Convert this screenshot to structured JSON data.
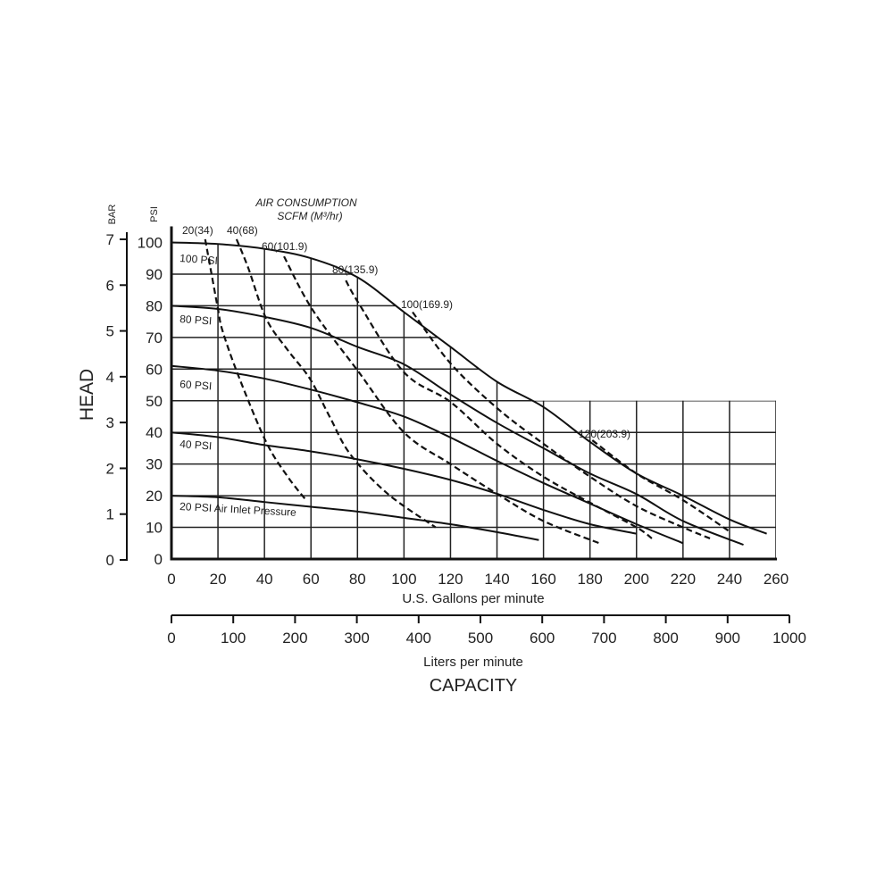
{
  "chart_data": {
    "type": "line",
    "ylabel": "HEAD",
    "ylabel_left_units": "BAR",
    "ylabel_right_units": "PSI",
    "xlabel": "U.S. Gallons per minute",
    "x2label": "Liters per minute",
    "caption": "CAPACITY",
    "air_title_1": "AIR CONSUMPTION",
    "air_title_2": "SCFM (M³/hr)",
    "xlim": [
      0,
      260
    ],
    "ylim": [
      0,
      100
    ],
    "x_ticks": [
      "0",
      "20",
      "40",
      "60",
      "80",
      "100",
      "120",
      "140",
      "160",
      "180",
      "200",
      "220",
      "240",
      "260"
    ],
    "y_ticks": [
      "0",
      "10",
      "20",
      "30",
      "40",
      "50",
      "60",
      "70",
      "80",
      "90",
      "100"
    ],
    "bar_ticks": [
      "0",
      "1",
      "2",
      "3",
      "4",
      "5",
      "6",
      "7"
    ],
    "lpm_ticks": [
      "0",
      "100",
      "200",
      "300",
      "400",
      "500",
      "600",
      "700",
      "800",
      "900",
      "1000"
    ],
    "grid": true,
    "pressure_curves": [
      {
        "name": "100 PSI",
        "points": [
          [
            0,
            100
          ],
          [
            20,
            99.5
          ],
          [
            40,
            98
          ],
          [
            60,
            95
          ],
          [
            80,
            89
          ],
          [
            100,
            78
          ],
          [
            120,
            67
          ],
          [
            140,
            56
          ],
          [
            160,
            48
          ],
          [
            180,
            37
          ],
          [
            200,
            27
          ],
          [
            220,
            20
          ],
          [
            240,
            12.5
          ],
          [
            256,
            8
          ]
        ]
      },
      {
        "name": "80 PSI",
        "points": [
          [
            0,
            80
          ],
          [
            20,
            79
          ],
          [
            40,
            76.5
          ],
          [
            60,
            73
          ],
          [
            80,
            67
          ],
          [
            100,
            61.5
          ],
          [
            120,
            52
          ],
          [
            140,
            43
          ],
          [
            160,
            35
          ],
          [
            180,
            27
          ],
          [
            200,
            20.5
          ],
          [
            220,
            12
          ],
          [
            246,
            4.5
          ]
        ]
      },
      {
        "name": "60 PSI",
        "points": [
          [
            0,
            61
          ],
          [
            20,
            59.5
          ],
          [
            40,
            57
          ],
          [
            60,
            53.5
          ],
          [
            80,
            49.5
          ],
          [
            100,
            45
          ],
          [
            120,
            38.4
          ],
          [
            140,
            31
          ],
          [
            160,
            24
          ],
          [
            180,
            17.5
          ],
          [
            200,
            11
          ],
          [
            220,
            5
          ]
        ]
      },
      {
        "name": "40 PSI",
        "points": [
          [
            0,
            40
          ],
          [
            20,
            38.5
          ],
          [
            40,
            36
          ],
          [
            60,
            34
          ],
          [
            80,
            31.5
          ],
          [
            100,
            28.5
          ],
          [
            120,
            25
          ],
          [
            140,
            20.6
          ],
          [
            160,
            15.5
          ],
          [
            180,
            11
          ],
          [
            200,
            8
          ]
        ]
      },
      {
        "name": "20 PSI Air Inlet Pressure",
        "points": [
          [
            0,
            20
          ],
          [
            20,
            19.5
          ],
          [
            40,
            18
          ],
          [
            60,
            16.5
          ],
          [
            80,
            15
          ],
          [
            100,
            13
          ],
          [
            120,
            11
          ],
          [
            140,
            8.5
          ],
          [
            158,
            6
          ]
        ]
      }
    ],
    "air_consumption_curves": [
      {
        "name": "20(34)",
        "points": [
          [
            14.5,
            101
          ],
          [
            16.5,
            93
          ],
          [
            20,
            79
          ],
          [
            22,
            72
          ],
          [
            29,
            57.5
          ],
          [
            40.7,
            37
          ],
          [
            50,
            26
          ],
          [
            58,
            18.5
          ]
        ]
      },
      {
        "name": "40(68)",
        "points": [
          [
            28,
            101
          ],
          [
            33,
            92
          ],
          [
            40.7,
            76
          ],
          [
            50,
            66
          ],
          [
            59.5,
            57
          ],
          [
            68,
            45
          ],
          [
            77,
            33
          ],
          [
            93,
            20.6
          ],
          [
            113.6,
            10
          ]
        ]
      },
      {
        "name": "60(101.9)",
        "points": [
          [
            48.4,
            95.6
          ],
          [
            60.7,
            78.7
          ],
          [
            80.6,
            59
          ],
          [
            100,
            40
          ],
          [
            120,
            30
          ],
          [
            140,
            20.6
          ],
          [
            160,
            12
          ],
          [
            184,
            5
          ]
        ]
      },
      {
        "name": "80(135.9)",
        "points": [
          [
            75,
            88
          ],
          [
            80.6,
            80.7
          ],
          [
            100,
            59
          ],
          [
            120,
            49.6
          ],
          [
            140,
            36.4
          ],
          [
            160,
            26
          ],
          [
            180,
            17.8
          ],
          [
            200,
            10
          ],
          [
            206.6,
            6.5
          ]
        ]
      },
      {
        "name": "100(169.9)",
        "points": [
          [
            103.7,
            78
          ],
          [
            120,
            61.8
          ],
          [
            140,
            47.7
          ],
          [
            160,
            36.4
          ],
          [
            180,
            26
          ],
          [
            200,
            16.7
          ],
          [
            220,
            10
          ],
          [
            231.6,
            6.5
          ]
        ]
      },
      {
        "name": "120(203.9)",
        "points": [
          [
            181,
            37.5
          ],
          [
            200,
            27
          ],
          [
            220,
            18.6
          ],
          [
            240,
            8.7
          ]
        ]
      }
    ]
  }
}
